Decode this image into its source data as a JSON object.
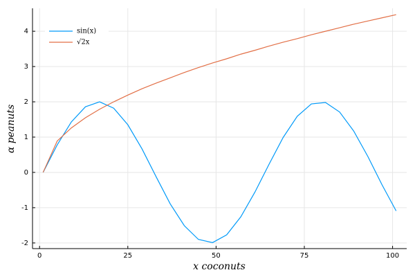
{
  "chart_data": {
    "type": "line",
    "xlabel": "x coconuts",
    "ylabel": "α peanuts",
    "x": [
      1,
      5,
      9,
      13,
      17,
      21,
      25,
      29,
      33,
      37,
      41,
      45,
      49,
      53,
      57,
      61,
      65,
      69,
      73,
      77,
      81,
      85,
      89,
      93,
      97,
      101
    ],
    "series": [
      {
        "name": "sin(x)",
        "color": "#009af9",
        "values": [
          0,
          0.78,
          1.43,
          1.86,
          2.0,
          1.82,
          1.35,
          0.67,
          -0.12,
          -0.89,
          -1.51,
          -1.9,
          -1.99,
          -1.77,
          -1.26,
          -0.56,
          0.23,
          0.99,
          1.59,
          1.94,
          1.98,
          1.71,
          1.17,
          0.45,
          -0.35,
          -1.09
        ]
      },
      {
        "name": "√2x",
        "color": "#e26f46",
        "values": [
          0,
          0.89,
          1.26,
          1.55,
          1.79,
          2.0,
          2.19,
          2.37,
          2.53,
          2.68,
          2.83,
          2.97,
          3.1,
          3.22,
          3.35,
          3.46,
          3.58,
          3.69,
          3.79,
          3.9,
          4.0,
          4.1,
          4.2,
          4.29,
          4.38,
          4.47
        ]
      }
    ],
    "xlim": [
      -2,
      104
    ],
    "ylim": [
      -2.16,
      4.65
    ],
    "xticks": [
      0,
      25,
      50,
      75,
      100
    ],
    "yticks": [
      -2,
      -1,
      0,
      1,
      2,
      3,
      4
    ],
    "grid": true,
    "legend": "top-left"
  }
}
